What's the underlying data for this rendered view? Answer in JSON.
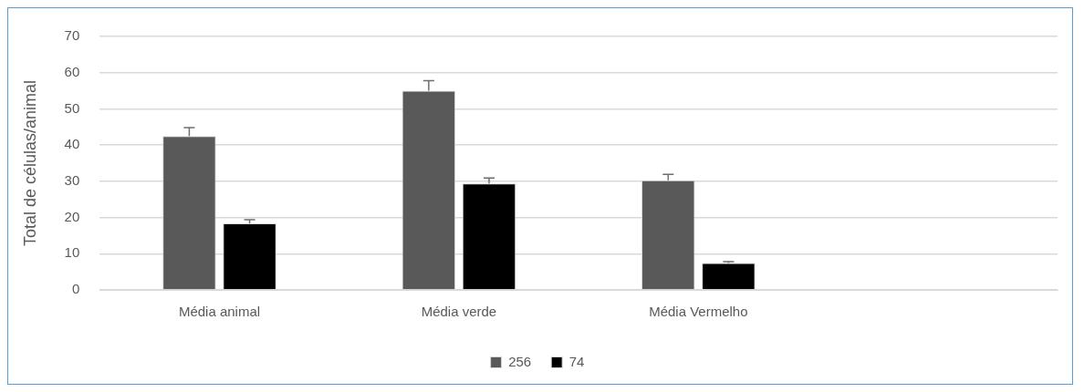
{
  "chart_data": {
    "type": "bar",
    "ylabel": "Total de células/animal",
    "categories": [
      "Média animal",
      "Média verde",
      "Média Vermelho",
      null
    ],
    "series": [
      {
        "name": "256",
        "color": "#595959",
        "values": [
          42.5,
          55.0,
          30.3,
          null
        ],
        "errors": [
          [
            42.5,
            44.8
          ],
          [
            55.0,
            57.8
          ],
          [
            30.3,
            31.9
          ],
          null
        ]
      },
      {
        "name": "74",
        "color": "#000000",
        "values": [
          18.4,
          29.4,
          7.4,
          null
        ],
        "errors": [
          [
            18.4,
            19.4
          ],
          [
            29.4,
            30.9
          ],
          [
            7.4,
            7.8
          ],
          null
        ]
      }
    ],
    "ylim": [
      0,
      70
    ],
    "yticks": [
      0,
      10,
      20,
      30,
      40,
      50,
      60,
      70
    ],
    "grid": "y",
    "legend": "bottom"
  }
}
